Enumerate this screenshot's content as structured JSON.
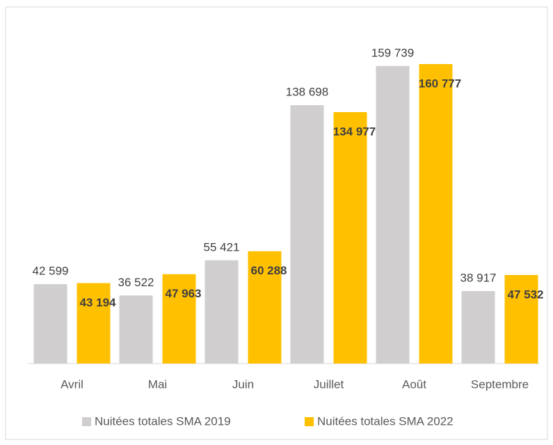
{
  "chart_data": {
    "type": "bar",
    "categories": [
      "Avril",
      "Mai",
      "Juin",
      "Juillet",
      "Août",
      "Septembre"
    ],
    "series": [
      {
        "name": "Nuitées totales SMA 2019",
        "color": "#d0cece",
        "values": [
          42599,
          36522,
          55421,
          138698,
          159739,
          38917
        ],
        "value_labels": [
          "42 599",
          "36 522",
          "55 421",
          "138 698",
          "159 739",
          "38 917"
        ]
      },
      {
        "name": "Nuitées totales SMA 2022",
        "color": "#ffc000",
        "values": [
          43194,
          47963,
          60288,
          134977,
          160777,
          47532
        ],
        "value_labels": [
          "43 194",
          "47 963",
          "60 288",
          "134 977",
          "160 777",
          "47 532"
        ]
      }
    ],
    "legend": "bottom"
  }
}
